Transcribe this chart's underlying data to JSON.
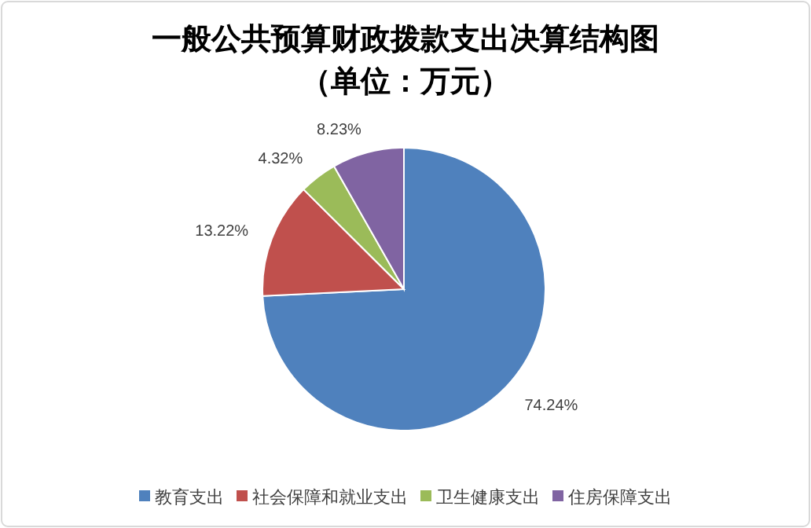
{
  "chart_data": {
    "type": "pie",
    "title": "一般公共预算财政拨款支出决算结构图",
    "subtitle": "（单位：万元）",
    "categories": [
      "教育支出",
      "社会保障和就业支出",
      "卫生健康支出",
      "住房保障支出"
    ],
    "values": [
      74.24,
      13.22,
      4.32,
      8.23
    ],
    "value_labels": [
      "74.24%",
      "13.22%",
      "4.32%",
      "8.23%"
    ],
    "colors": [
      "#4f81bd",
      "#c0504d",
      "#9bbb59",
      "#8064a2"
    ],
    "legend": "bottom"
  }
}
